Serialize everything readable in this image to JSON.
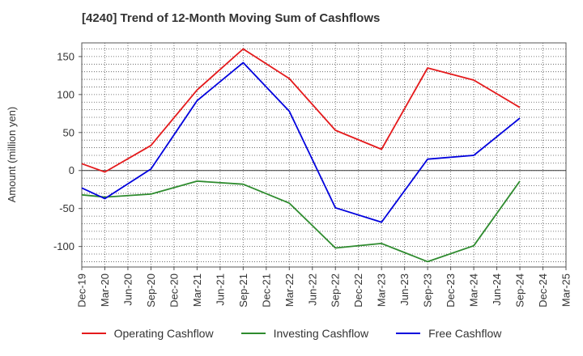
{
  "title": "[4240]  Trend of 12-Month Moving Sum of Cashflows",
  "chart_data": {
    "type": "line",
    "title": "[4240]  Trend of 12-Month Moving Sum of Cashflows",
    "xlabel": "",
    "ylabel": "Amount (million yen)",
    "categories": [
      "Dec-19",
      "Mar-20",
      "Jun-20",
      "Sep-20",
      "Dec-20",
      "Mar-21",
      "Jun-21",
      "Sep-21",
      "Dec-21",
      "Mar-22",
      "Jun-22",
      "Sep-22",
      "Dec-22",
      "Mar-23",
      "Jun-23",
      "Sep-23",
      "Dec-23",
      "Mar-24",
      "Jun-24",
      "Sep-24",
      "Dec-24",
      "Mar-25"
    ],
    "ylim": [
      -127,
      168
    ],
    "yticks": [
      150,
      100,
      50,
      0,
      -50,
      -100
    ],
    "ytick_labels": [
      "150",
      "100",
      "50",
      "0",
      "-50",
      "-100"
    ],
    "grid": true,
    "legend_position": "bottom",
    "series": [
      {
        "name": "Operating Cashflow",
        "color": "#e41a1c",
        "values": [
          9,
          -2,
          null,
          33,
          null,
          106,
          null,
          160,
          null,
          121,
          null,
          53,
          null,
          28,
          null,
          135,
          null,
          119,
          null,
          83,
          null,
          null
        ]
      },
      {
        "name": "Investing Cashflow",
        "color": "#2e8b2e",
        "values": [
          -32,
          -35,
          null,
          -31,
          null,
          -14,
          null,
          -18,
          null,
          -43,
          null,
          -102,
          null,
          -96,
          null,
          -120,
          null,
          -99,
          null,
          -14,
          null,
          null
        ]
      },
      {
        "name": "Free Cashflow",
        "color": "#0000dd",
        "values": [
          -23,
          -37,
          null,
          2,
          null,
          92,
          null,
          142,
          null,
          78,
          null,
          -49,
          null,
          -68,
          null,
          15,
          null,
          20,
          null,
          69,
          null,
          null
        ]
      }
    ]
  }
}
